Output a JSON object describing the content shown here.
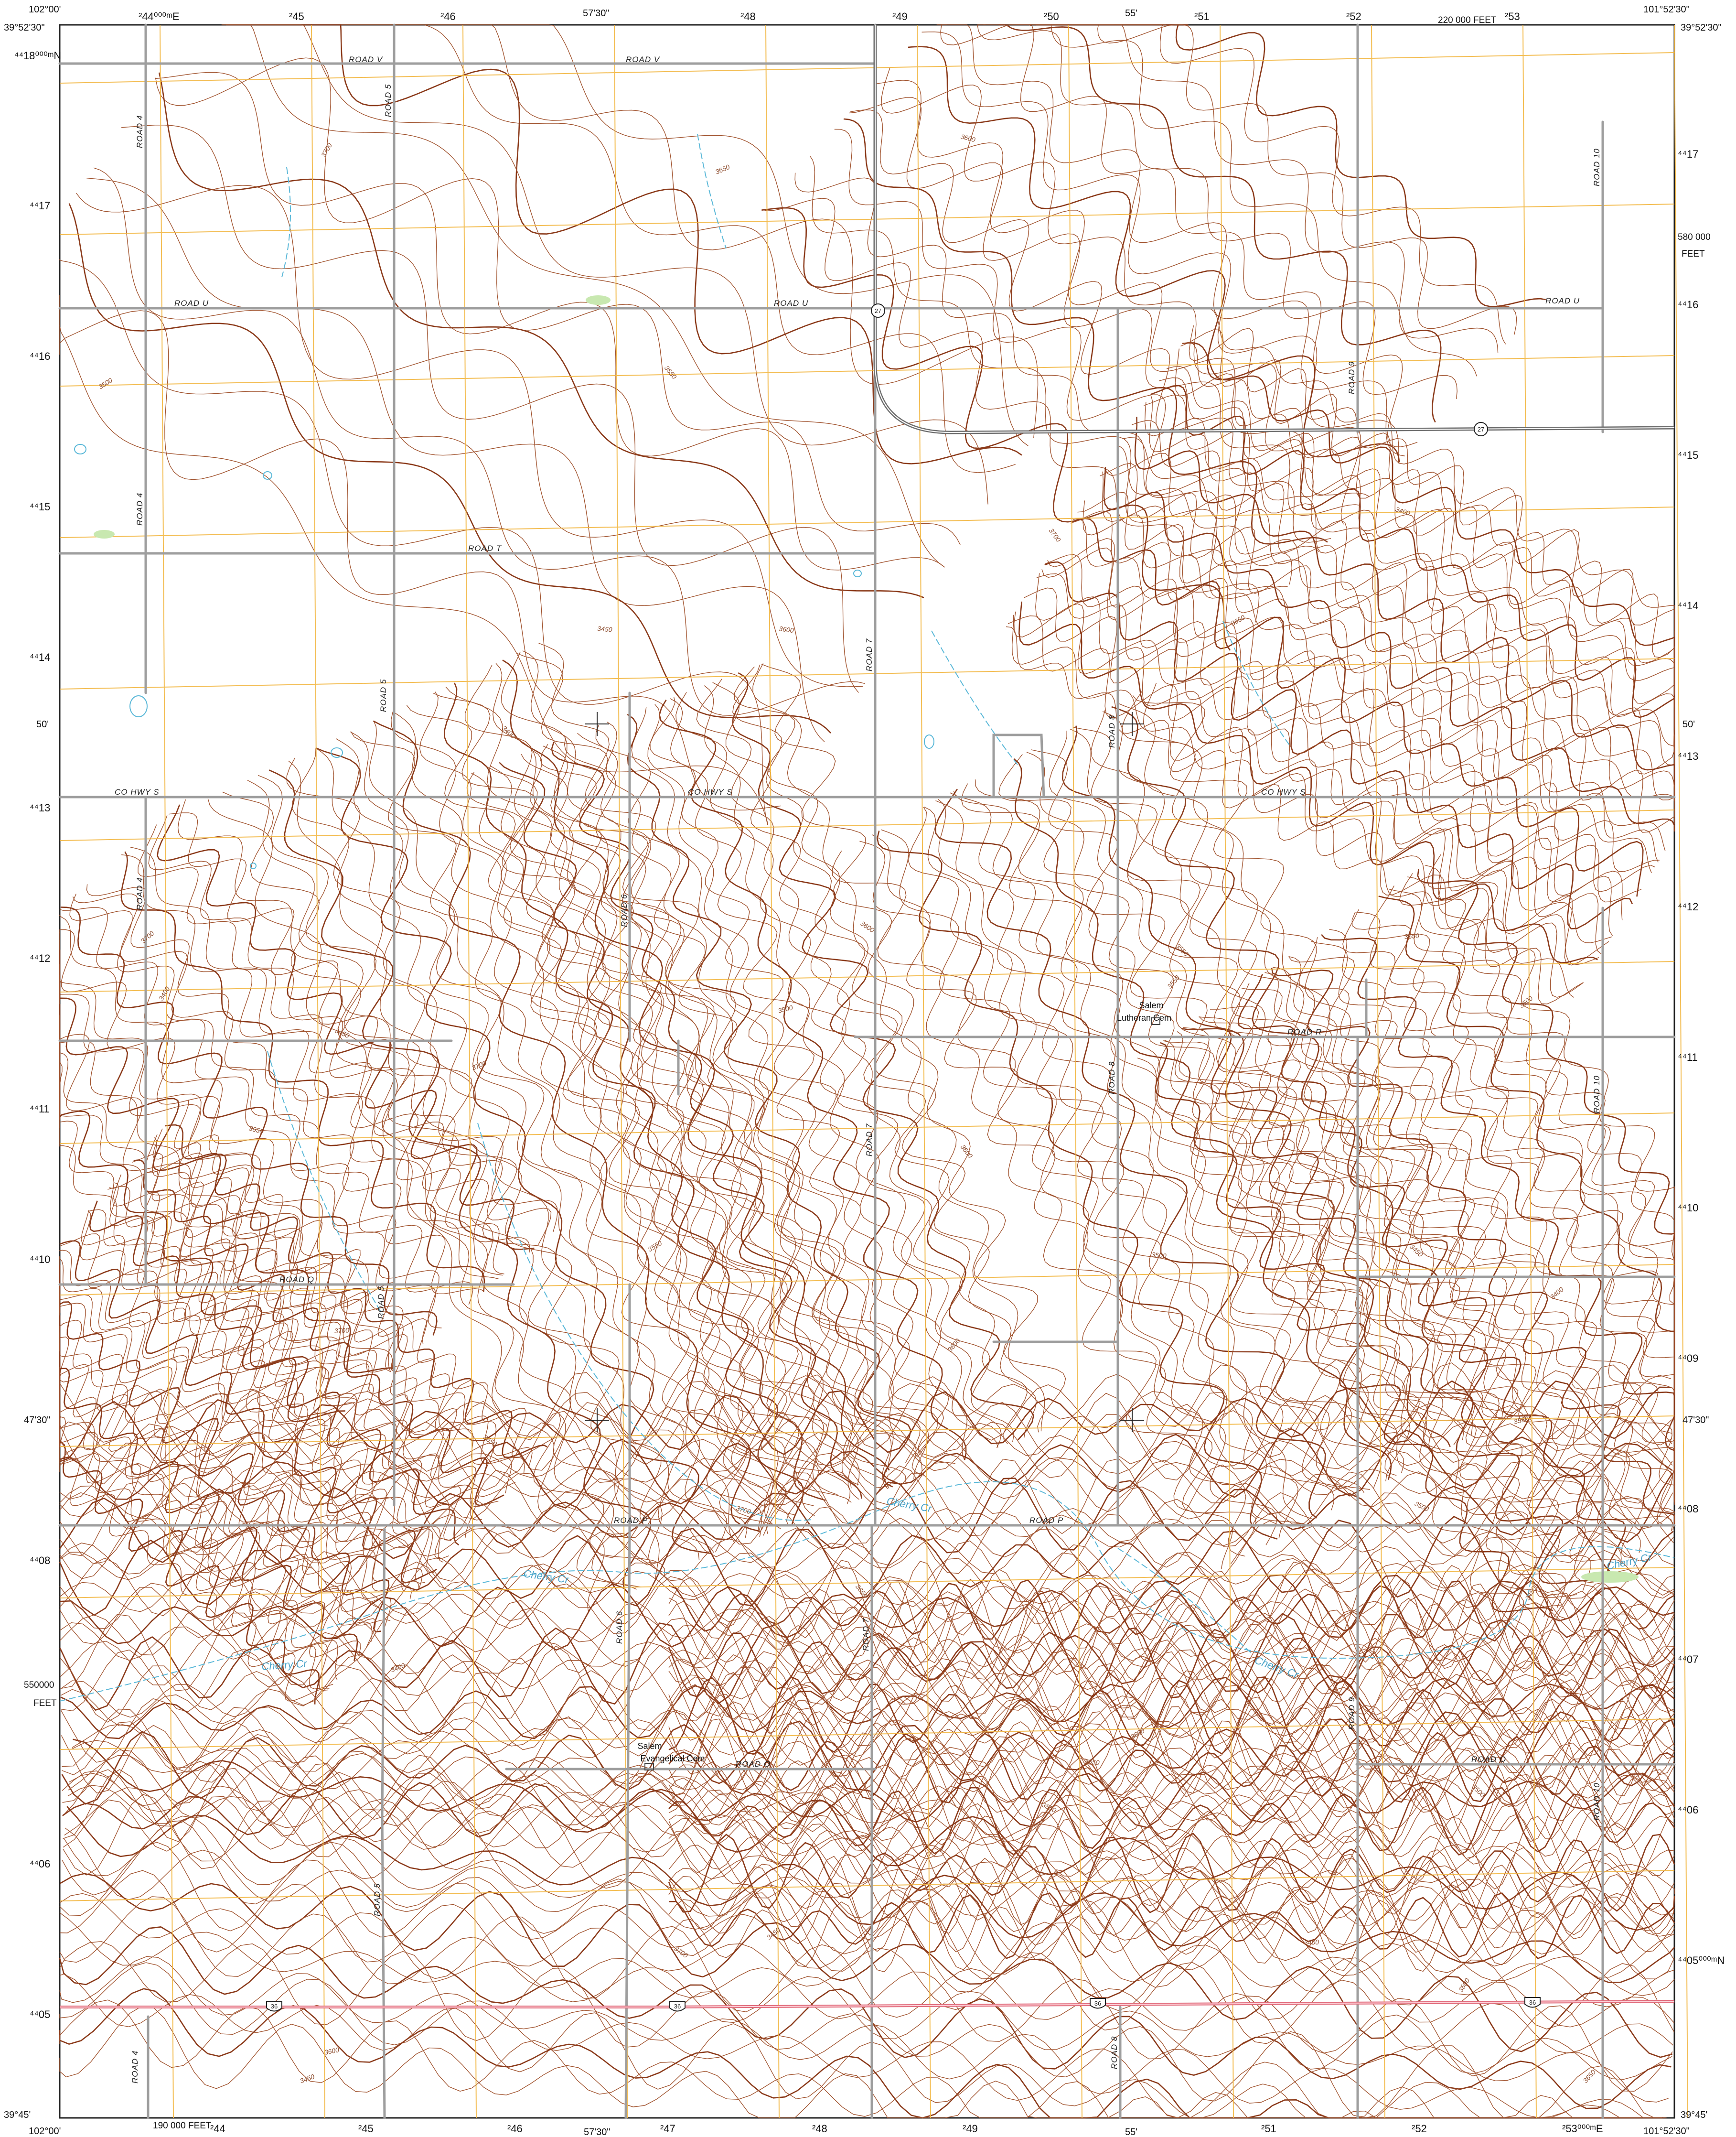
{
  "corners": {
    "top_left_lon": "102°00'",
    "top_left_lat": "39°52'30\"",
    "top_right_lon": "101°52'30\"",
    "top_right_lat": "39°52'30\"",
    "bottom_left_lat": "39°45'",
    "bottom_left_lon": "102°00'",
    "bottom_right_lat": "39°45'",
    "bottom_right_lon": "101°52'30\""
  },
  "top_ticks": {
    "first_easting": "²44⁰⁰⁰ᵐE",
    "eastings": [
      "²45",
      "²46",
      "²48",
      "²49",
      "²50",
      "²51",
      "²52",
      "²53"
    ],
    "minutes": [
      "57'30\"",
      "55'"
    ],
    "feet": "220 000 FEET"
  },
  "bottom_ticks": {
    "feet": "190 000 FEET",
    "eastings": [
      "²44",
      "²45",
      "²46",
      "²47",
      "²48",
      "²49",
      "²51",
      "²52"
    ],
    "last_easting": "²53⁰⁰⁰ᵐE",
    "minutes": [
      "57'30\"",
      "55'"
    ]
  },
  "left_ticks": {
    "first_northing": "⁴⁴18⁰⁰⁰ᵐN",
    "northings": [
      "⁴⁴17",
      "⁴⁴16",
      "⁴⁴15",
      "⁴⁴14",
      "⁴⁴13",
      "⁴⁴12",
      "⁴⁴11",
      "⁴⁴10",
      "⁴⁴08",
      "⁴⁴06",
      "⁴⁴05"
    ],
    "minutes": [
      "50'",
      "47'30\""
    ],
    "feet_value": "550000",
    "feet_unit": "FEET"
  },
  "right_ticks": {
    "northings": [
      "⁴⁴17",
      "⁴⁴16",
      "⁴⁴15",
      "⁴⁴14",
      "⁴⁴13",
      "⁴⁴12",
      "⁴⁴11",
      "⁴⁴10",
      "⁴⁴09",
      "⁴⁴08",
      "⁴⁴07",
      "⁴⁴06"
    ],
    "last_northing": "⁴⁴05⁰⁰⁰ᵐN",
    "minutes": [
      "50'",
      "47'30\""
    ],
    "feet_value": "580 000",
    "feet_unit": "FEET"
  },
  "roads": {
    "road_v": "ROAD V",
    "road_u": "ROAD U",
    "road_t": "ROAD T",
    "co_hwy_s": "CO HWY S",
    "road_r": "ROAD R",
    "road_q": "ROAD Q",
    "road_p": "ROAD P",
    "road_o": "ROAD O",
    "road_4": "ROAD 4",
    "road_5": "ROAD 5",
    "road_6": "ROAD 6",
    "road_7": "ROAD 7",
    "road_8": "ROAD 8",
    "road_9": "ROAD 9",
    "road_10": "ROAD 10"
  },
  "route_shields": {
    "state": "27",
    "us": "36"
  },
  "places": {
    "cem1_line1": "Salem",
    "cem1_line2": "Lutheran Cem",
    "cem2_line1": "Salem",
    "cem2_line2": "Evangelical Cem"
  },
  "streams": {
    "cherry_cr": "Cherry Cr"
  },
  "elevations": [
    "3700",
    "3650",
    "3600",
    "3550",
    "3500",
    "3450",
    "3400"
  ],
  "colors": {
    "contour": "#a0522d",
    "contour_index": "#8b3a1a",
    "grid": "#f2b640",
    "road": "#9e9e9e",
    "highway": "#e06a7a",
    "water": "#5ab8d8",
    "border": "#222222",
    "vegetation": "#c8e8b0"
  }
}
